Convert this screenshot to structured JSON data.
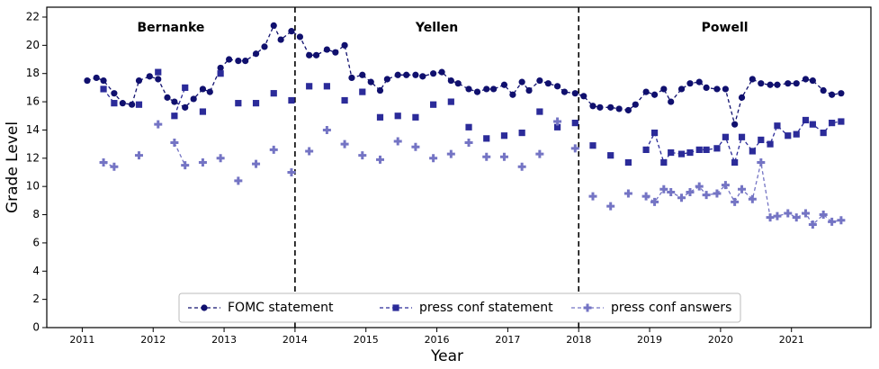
{
  "chart_data": {
    "type": "line",
    "xlabel": "Year",
    "ylabel": "Grade Level",
    "xlim": [
      2010.5,
      2022.12
    ],
    "ylim": [
      0,
      22.7
    ],
    "xticks": [
      2011,
      2012,
      2013,
      2014,
      2015,
      2016,
      2017,
      2018,
      2019,
      2020,
      2021
    ],
    "yticks": [
      0,
      2,
      4,
      6,
      8,
      10,
      12,
      14,
      16,
      18,
      20,
      22
    ],
    "dividers": [
      2014,
      2018
    ],
    "eras": [
      "Bernanke",
      "Yellen",
      "Powell"
    ],
    "legend": "lower center",
    "x": [
      2011.07,
      2011.2,
      2011.3,
      2011.45,
      2011.57,
      2011.7,
      2011.8,
      2011.95,
      2012.07,
      2012.2,
      2012.3,
      2012.45,
      2012.57,
      2012.7,
      2012.8,
      2012.95,
      2013.07,
      2013.2,
      2013.3,
      2013.45,
      2013.57,
      2013.7,
      2013.8,
      2013.95,
      2014.07,
      2014.2,
      2014.3,
      2014.45,
      2014.57,
      2014.7,
      2014.8,
      2014.95,
      2015.07,
      2015.2,
      2015.3,
      2015.45,
      2015.57,
      2015.7,
      2015.8,
      2015.95,
      2016.07,
      2016.2,
      2016.3,
      2016.45,
      2016.57,
      2016.7,
      2016.8,
      2016.95,
      2017.07,
      2017.2,
      2017.3,
      2017.45,
      2017.57,
      2017.7,
      2017.8,
      2017.95,
      2018.07,
      2018.2,
      2018.3,
      2018.45,
      2018.57,
      2018.7,
      2018.8,
      2018.95,
      2019.07,
      2019.2,
      2019.3,
      2019.45,
      2019.57,
      2019.7,
      2019.8,
      2019.95,
      2020.07,
      2020.2,
      2020.3,
      2020.45,
      2020.57,
      2020.7,
      2020.8,
      2020.95,
      2021.07,
      2021.2,
      2021.3,
      2021.45,
      2021.57,
      2021.7
    ],
    "series": [
      {
        "name": "FOMC statement",
        "color": "#10106e",
        "marker": "circle",
        "values": [
          17.5,
          17.7,
          17.5,
          16.6,
          15.9,
          15.8,
          17.5,
          17.8,
          17.6,
          16.3,
          16.0,
          15.6,
          16.2,
          16.9,
          16.7,
          18.4,
          19.0,
          18.9,
          18.9,
          19.4,
          19.9,
          21.4,
          20.4,
          21.0,
          20.6,
          19.3,
          19.3,
          19.7,
          19.5,
          20.0,
          17.7,
          17.9,
          17.4,
          16.8,
          17.6,
          17.9,
          17.9,
          17.9,
          17.8,
          18.0,
          18.1,
          17.5,
          17.3,
          16.9,
          16.7,
          16.9,
          16.9,
          17.2,
          16.5,
          17.4,
          16.8,
          17.5,
          17.3,
          17.1,
          16.7,
          16.6,
          16.4,
          15.7,
          15.6,
          15.6,
          15.5,
          15.4,
          15.8,
          16.7,
          16.5,
          16.9,
          16.0,
          16.9,
          17.3,
          17.4,
          17.0,
          16.9,
          16.9,
          14.4,
          16.3,
          17.6,
          17.3,
          17.2,
          17.2,
          17.3,
          17.3,
          17.6,
          17.5,
          16.8,
          16.5,
          16.6
        ]
      },
      {
        "name": "press conf statement",
        "color": "#2b2b99",
        "marker": "square",
        "values": [
          null,
          null,
          16.9,
          15.9,
          null,
          null,
          15.8,
          null,
          18.1,
          null,
          15.0,
          17.0,
          null,
          15.3,
          null,
          18.0,
          null,
          15.9,
          null,
          15.9,
          null,
          16.6,
          null,
          16.1,
          null,
          17.1,
          null,
          17.1,
          null,
          16.1,
          null,
          16.7,
          null,
          14.9,
          null,
          15.0,
          null,
          14.9,
          null,
          15.8,
          null,
          16.0,
          null,
          14.2,
          null,
          13.4,
          null,
          13.6,
          null,
          13.8,
          null,
          15.3,
          null,
          14.2,
          null,
          14.5,
          null,
          12.9,
          null,
          12.2,
          null,
          11.7,
          null,
          12.6,
          13.8,
          11.7,
          12.4,
          12.3,
          12.4,
          12.6,
          12.6,
          12.7,
          13.5,
          11.7,
          13.5,
          12.5,
          13.3,
          13.0,
          14.3,
          13.6,
          13.7,
          14.7,
          14.4,
          13.8,
          14.5,
          14.6
        ]
      },
      {
        "name": "press conf answers",
        "color": "#7474c4",
        "marker": "plus",
        "values": [
          null,
          null,
          11.7,
          11.4,
          null,
          null,
          12.2,
          null,
          14.4,
          null,
          13.1,
          11.5,
          null,
          11.7,
          null,
          12.0,
          null,
          10.4,
          null,
          11.6,
          null,
          12.6,
          null,
          11.0,
          null,
          12.5,
          null,
          14.0,
          null,
          13.0,
          null,
          12.2,
          null,
          11.9,
          null,
          13.2,
          null,
          12.8,
          null,
          12.0,
          null,
          12.3,
          null,
          13.1,
          null,
          12.1,
          null,
          12.1,
          null,
          11.4,
          null,
          12.3,
          null,
          14.6,
          null,
          12.7,
          null,
          9.3,
          null,
          8.6,
          null,
          9.5,
          null,
          9.3,
          8.9,
          9.8,
          9.6,
          9.2,
          9.6,
          10.0,
          9.4,
          9.5,
          10.1,
          8.9,
          9.8,
          9.1,
          11.7,
          7.8,
          7.9,
          8.1,
          7.8,
          8.1,
          7.3,
          8.0,
          7.5,
          7.6
        ]
      }
    ]
  }
}
